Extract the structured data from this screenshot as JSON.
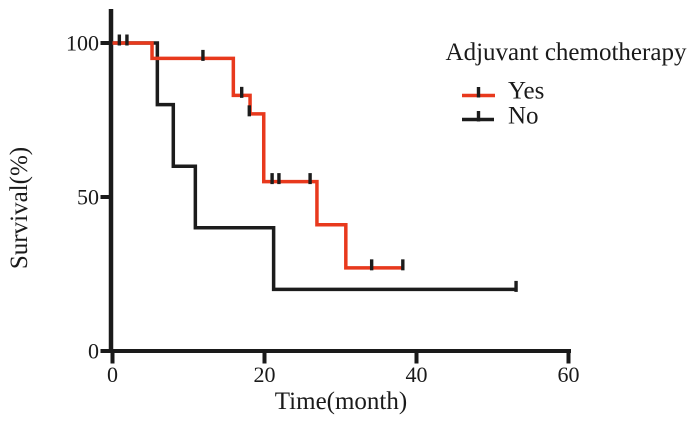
{
  "figure": {
    "background": "#ffffff",
    "text_color": "#1a1a1a",
    "axis_color": "#1a1a1a",
    "censor_tick_color": "#1c1c1c"
  },
  "chart_data": {
    "type": "line",
    "subtype": "kaplan-meier-step-curves",
    "title": "",
    "xlabel": "Time(month)",
    "ylabel": "Survival(%)",
    "xlim": [
      0,
      60
    ],
    "ylim": [
      0,
      100
    ],
    "xticks": [
      0,
      20,
      40,
      60
    ],
    "yticks": [
      0,
      50,
      100
    ],
    "grid": false,
    "legend": {
      "title": "Adjuvant chemotherapy",
      "position": "top-right",
      "entries": [
        {
          "label": "Yes",
          "color": "#e8391d"
        },
        {
          "label": "No",
          "color": "#1c1c1c"
        }
      ]
    },
    "series": [
      {
        "name": "Yes",
        "color": "#e8391d",
        "points": [
          [
            0,
            100
          ],
          [
            5.2,
            100
          ],
          [
            5.2,
            95
          ],
          [
            15.9,
            95
          ],
          [
            15.9,
            83
          ],
          [
            18.1,
            83
          ],
          [
            18.1,
            77
          ],
          [
            19.9,
            77
          ],
          [
            19.9,
            55
          ],
          [
            26.9,
            55
          ],
          [
            26.9,
            41
          ],
          [
            30.7,
            41
          ],
          [
            30.7,
            27
          ],
          [
            38.3,
            27
          ]
        ],
        "censor_marks": [
          [
            0.9,
            100
          ],
          [
            1.9,
            100
          ],
          [
            11.9,
            95
          ],
          [
            17.0,
            83
          ],
          [
            18.0,
            77
          ],
          [
            21.0,
            55
          ],
          [
            21.9,
            55
          ],
          [
            26.0,
            55
          ],
          [
            34.1,
            27
          ],
          [
            38.2,
            27
          ]
        ]
      },
      {
        "name": "No",
        "color": "#1c1c1c",
        "points": [
          [
            0,
            100
          ],
          [
            5.9,
            100
          ],
          [
            5.9,
            80
          ],
          [
            8.0,
            80
          ],
          [
            8.0,
            60
          ],
          [
            10.9,
            60
          ],
          [
            10.9,
            40
          ],
          [
            21.2,
            40
          ],
          [
            21.2,
            20
          ],
          [
            53.1,
            20
          ]
        ],
        "censor_marks": [
          [
            53.1,
            20
          ]
        ]
      }
    ]
  }
}
